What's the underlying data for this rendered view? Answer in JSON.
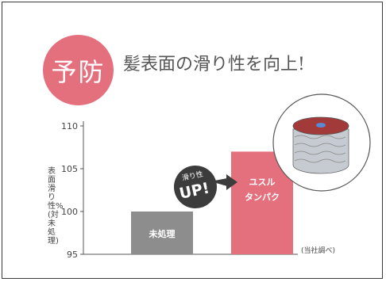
{
  "badge": {
    "text": "予防"
  },
  "heading": "髪表面の滑り性を向上!",
  "callout": {
    "line1": "滑り性",
    "line2": "UP!"
  },
  "source": "(当社調べ)",
  "colors": {
    "accent": "#e5707d",
    "bar_untreated": "#8d8d8d",
    "bar_product": "#e5707d",
    "callout": "#3c3c3c"
  },
  "chart_data": {
    "type": "bar",
    "title": "",
    "xlabel": "",
    "ylabel": "表面滑り性%(対未処理)",
    "ylim": [
      95,
      110
    ],
    "yticks": [
      95,
      100,
      105,
      110
    ],
    "categories": [
      "未処理",
      "ユスル タンパク"
    ],
    "values": [
      100,
      107
    ],
    "colors": [
      "#8d8d8d",
      "#e5707d"
    ]
  }
}
